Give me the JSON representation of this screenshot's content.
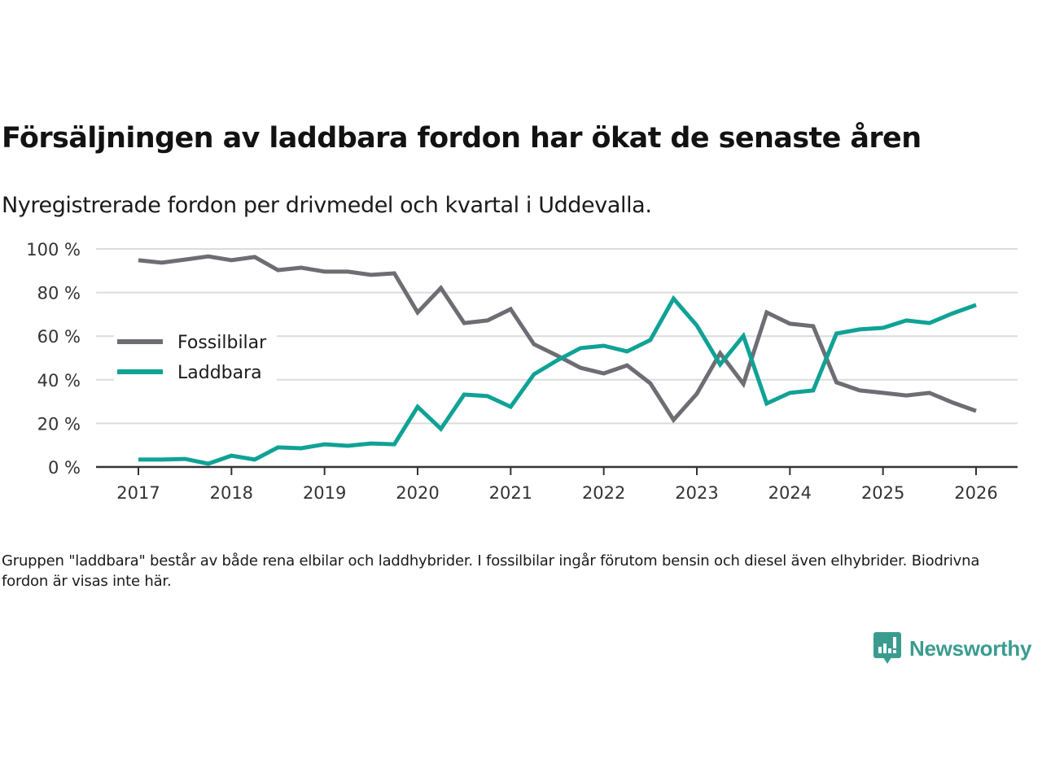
{
  "header": {
    "title": "Försäljningen av laddbara fordon har ökat de senaste åren",
    "subtitle": "Nyregistrerade fordon per drivmedel och kvartal i Uddevalla."
  },
  "footnote": "Gruppen \"laddbara\" består av både rena elbilar och laddhybrider. I fossilbilar ingår förutom bensin och diesel även elhybrider. Biodrivna fordon är visas inte här.",
  "logo": {
    "name": "Newsworthy",
    "icon": "chart-speech-bubble-icon",
    "color": "#3a9c8f"
  },
  "chart_data": {
    "type": "line",
    "title": "Försäljningen av laddbara fordon har ökat de senaste åren",
    "subtitle": "Nyregistrerade fordon per drivmedel och kvartal i Uddevalla.",
    "xlabel": "",
    "ylabel": "",
    "ylim": [
      0,
      100
    ],
    "xlim": [
      2016.55,
      2027.0
    ],
    "yticks": [
      0,
      20,
      40,
      60,
      80,
      100
    ],
    "ytick_labels": [
      "0 %",
      "20 %",
      "40 %",
      "60 %",
      "80 %",
      "100 %"
    ],
    "xticks": [
      2017,
      2018,
      2019,
      2020,
      2021,
      2022,
      2023,
      2024,
      2025,
      2026
    ],
    "xtick_labels": [
      "2017",
      "2018",
      "2019",
      "2020",
      "2021",
      "2022",
      "2023",
      "2024",
      "2025",
      "2026"
    ],
    "grid": "horizontal",
    "legend_position": "center-left",
    "x": [
      2017.0,
      2017.25,
      2017.5,
      2017.75,
      2018.0,
      2018.25,
      2018.5,
      2018.75,
      2019.0,
      2019.25,
      2019.5,
      2019.75,
      2020.0,
      2020.25,
      2020.5,
      2020.75,
      2021.0,
      2021.25,
      2021.5,
      2021.75,
      2022.0,
      2022.25,
      2022.5,
      2022.75,
      2023.0,
      2023.25,
      2023.5,
      2023.75,
      2024.0,
      2024.25,
      2024.5,
      2024.75,
      2025.0,
      2025.25,
      2025.5,
      2025.75,
      2026.0
    ],
    "series": [
      {
        "name": "Fossilbilar",
        "color": "#6e6d73",
        "values": [
          94.8,
          93.7,
          95.1,
          96.6,
          94.8,
          96.3,
          90.3,
          91.4,
          89.6,
          89.6,
          88.1,
          88.8,
          70.9,
          82.1,
          66.0,
          67.2,
          72.4,
          56.3,
          51.1,
          45.5,
          42.9,
          46.6,
          38.4,
          21.6,
          33.6,
          52.2,
          38.1,
          70.9,
          65.7,
          64.6,
          38.8,
          35.1,
          34.0,
          32.8,
          34.0,
          29.5,
          25.7
        ]
      },
      {
        "name": "Laddbara",
        "color": "#0fa295",
        "values": [
          3.4,
          3.4,
          3.7,
          1.5,
          5.2,
          3.4,
          9.0,
          8.6,
          10.4,
          9.7,
          10.8,
          10.4,
          27.6,
          17.5,
          33.2,
          32.5,
          27.6,
          42.5,
          48.9,
          54.5,
          55.6,
          53.0,
          58.2,
          77.2,
          64.9,
          47.0,
          60.1,
          29.1,
          34.0,
          35.1,
          61.2,
          63.1,
          63.8,
          67.2,
          66.0,
          70.5,
          74.3
        ]
      }
    ]
  }
}
